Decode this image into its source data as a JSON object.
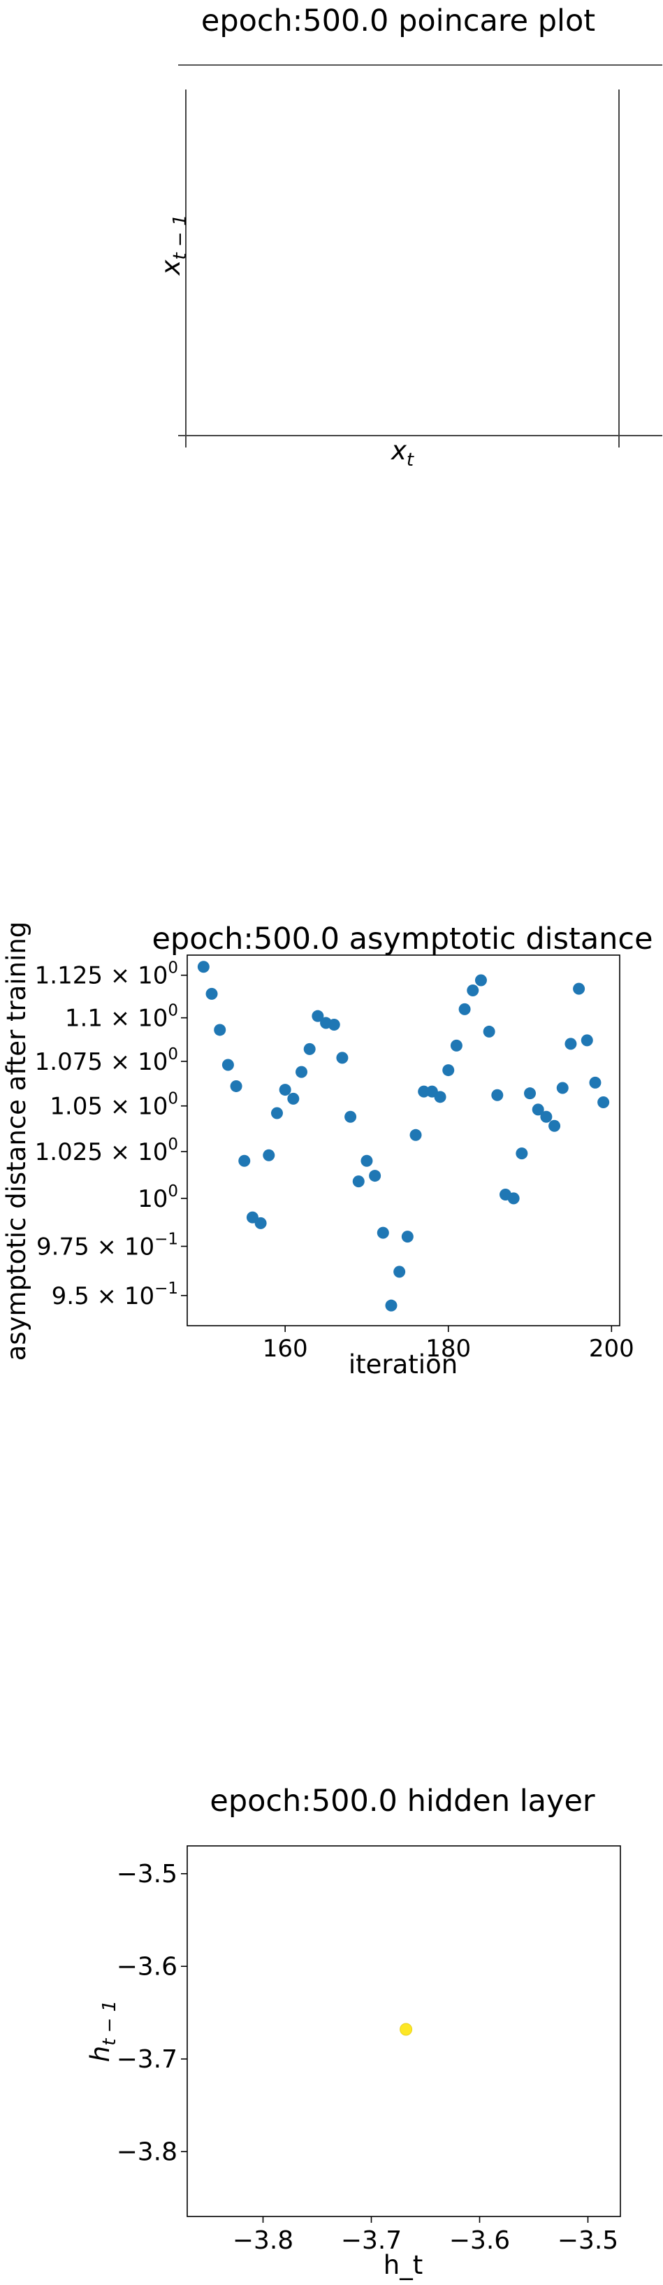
{
  "chart_data": [
    {
      "type": "scatter",
      "title": "epoch:500.0 poincare plot",
      "xlabel": "x_t",
      "ylabel": "x_{t-1}",
      "x": [],
      "y": [],
      "grid": false
    },
    {
      "type": "scatter",
      "title": "epoch:500.0 asymptotic distance",
      "xlabel": "iteration",
      "ylabel": "asymptotic distance after training",
      "log_y": true,
      "xlim": [
        148,
        201
      ],
      "ylim": [
        0.935,
        1.137
      ],
      "x_ticks": [
        {
          "value": 160,
          "label": "160"
        },
        {
          "value": 180,
          "label": "180"
        },
        {
          "value": 200,
          "label": "200"
        }
      ],
      "y_ticks": [
        {
          "value": 0.95,
          "mantissa": "9.5",
          "exp": "−1"
        },
        {
          "value": 0.975,
          "mantissa": "9.75",
          "exp": "−1"
        },
        {
          "value": 1.0,
          "mantissa": "",
          "exp": "0"
        },
        {
          "value": 1.025,
          "mantissa": "1.025",
          "exp": "0"
        },
        {
          "value": 1.05,
          "mantissa": "1.05",
          "exp": "0"
        },
        {
          "value": 1.075,
          "mantissa": "1.075",
          "exp": "0"
        },
        {
          "value": 1.1,
          "mantissa": "1.1",
          "exp": "0"
        },
        {
          "value": 1.125,
          "mantissa": "1.125",
          "exp": "0"
        }
      ],
      "color": "#1f77b4",
      "grid": false,
      "x": [
        150,
        151,
        152,
        153,
        154,
        155,
        156,
        157,
        158,
        159,
        160,
        161,
        162,
        163,
        164,
        165,
        166,
        167,
        168,
        169,
        170,
        171,
        172,
        173,
        174,
        175,
        176,
        177,
        178,
        179,
        180,
        181,
        182,
        183,
        184,
        185,
        186,
        187,
        188,
        189,
        190,
        191,
        192,
        193,
        194,
        195,
        196,
        197,
        198,
        199
      ],
      "y": [
        1.13,
        1.114,
        1.093,
        1.073,
        1.061,
        1.02,
        0.99,
        0.987,
        1.023,
        1.046,
        1.059,
        1.054,
        1.069,
        1.082,
        1.101,
        1.097,
        1.096,
        1.077,
        1.044,
        1.009,
        1.02,
        1.012,
        0.982,
        0.945,
        0.962,
        0.98,
        1.034,
        1.058,
        1.058,
        1.055,
        1.07,
        1.084,
        1.105,
        1.116,
        1.122,
        1.092,
        1.056,
        1.002,
        1.0,
        1.024,
        1.057,
        1.048,
        1.044,
        1.039,
        1.06,
        1.085,
        1.117,
        1.087,
        1.063,
        1.052
      ]
    },
    {
      "type": "scatter",
      "title": "epoch:500.0 hidden layer",
      "xlabel": "h_t",
      "ylabel": "h_{t-1}",
      "xlim": [
        -3.87,
        -3.47
      ],
      "ylim": [
        -3.87,
        -3.47
      ],
      "x_ticks": [
        {
          "value": -3.8,
          "label": "−3.8"
        },
        {
          "value": -3.7,
          "label": "−3.7"
        },
        {
          "value": -3.6,
          "label": "−3.6"
        },
        {
          "value": -3.5,
          "label": "−3.5"
        }
      ],
      "y_ticks": [
        {
          "value": -3.5,
          "label": "−3.5"
        },
        {
          "value": -3.6,
          "label": "−3.6"
        },
        {
          "value": -3.7,
          "label": "−3.7"
        },
        {
          "value": -3.8,
          "label": "−3.8"
        }
      ],
      "color": "#fde725",
      "grid": false,
      "x": [
        -3.668
      ],
      "y": [
        -3.668
      ]
    }
  ]
}
